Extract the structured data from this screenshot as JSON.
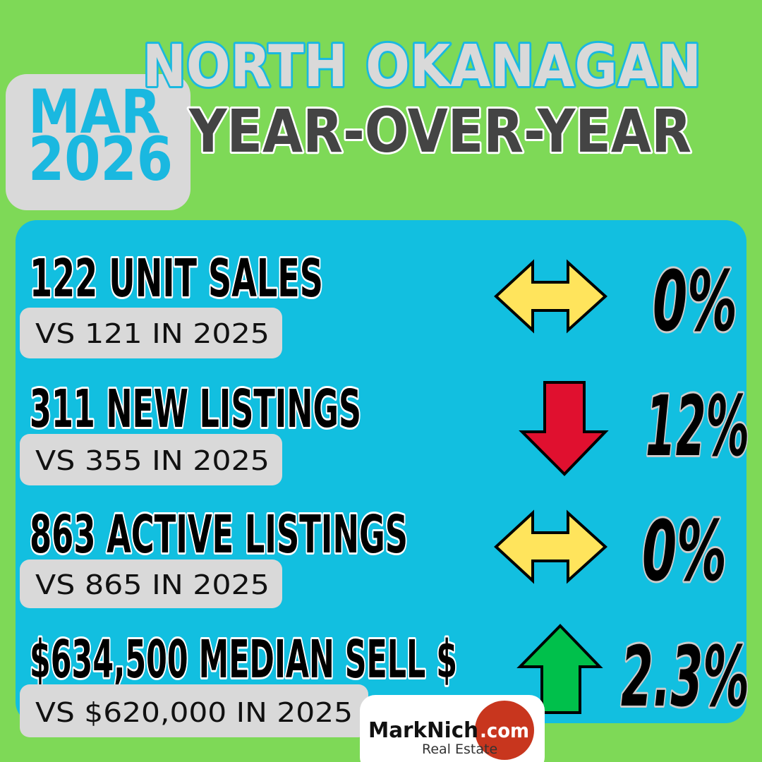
{
  "header": {
    "month": "MAR",
    "year": "2026",
    "title_line1": "NORTH OKANAGAN",
    "title_line2": "YEAR-OVER-YEAR"
  },
  "rows": [
    {
      "headline": "122 UNIT SALES",
      "comparison": "VS 121 IN 2025",
      "change": "0%"
    },
    {
      "headline": "311 NEW LISTINGS",
      "comparison": "VS 355 IN 2025",
      "change": "12%"
    },
    {
      "headline": "863 ACTIVE LISTINGS",
      "comparison": "VS 865 IN 2025",
      "change": "0%"
    },
    {
      "headline": "$634,500 MEDIAN SELL $",
      "comparison": "VS $620,000 IN 2025",
      "change": "2.3%"
    }
  ],
  "logo": {
    "name": "MarkNich",
    "domain": ".com",
    "tagline": "Real Estate"
  }
}
